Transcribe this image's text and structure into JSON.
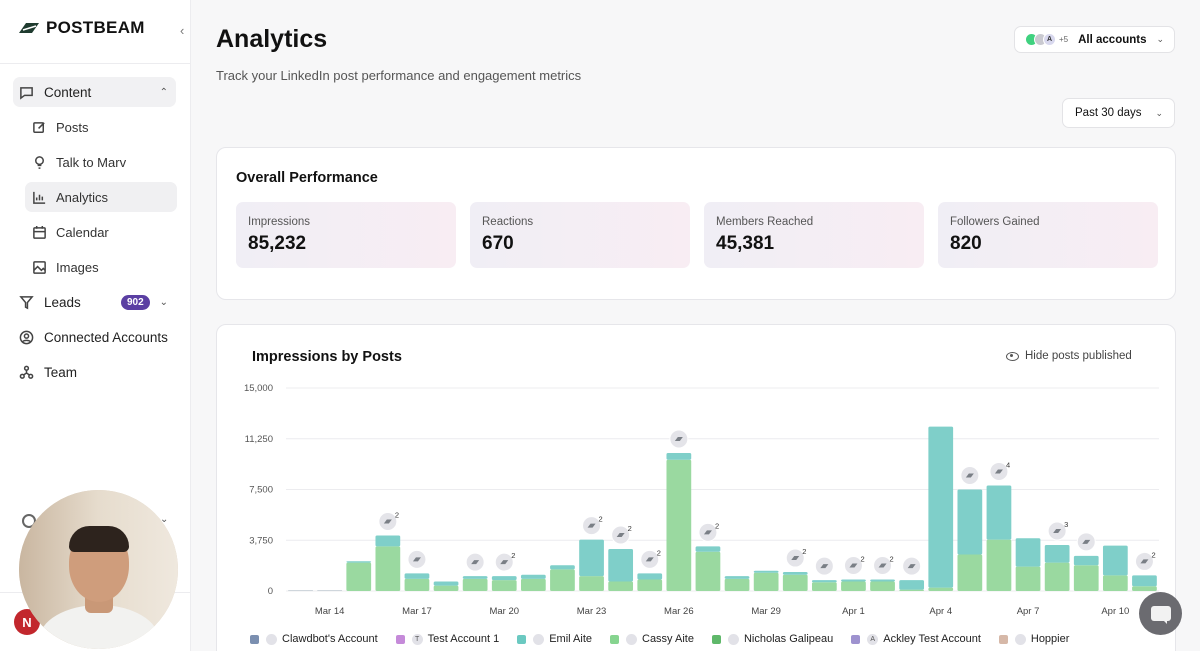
{
  "brand": {
    "name": "POSTBEAM"
  },
  "sidebar": {
    "content_label": "Content",
    "sub_items": [
      {
        "label": "Posts",
        "icon": "edit-icon"
      },
      {
        "label": "Talk to Marv",
        "icon": "lightbulb-icon"
      },
      {
        "label": "Analytics",
        "icon": "bar-chart-icon"
      },
      {
        "label": "Calendar",
        "icon": "calendar-icon"
      },
      {
        "label": "Images",
        "icon": "image-icon"
      }
    ],
    "leads_label": "Leads",
    "leads_badge": "902",
    "connected_label": "Connected Accounts",
    "team_label": "Team",
    "user_initial": "N"
  },
  "header": {
    "title": "Analytics",
    "subtitle": "Track your LinkedIn post performance and engagement metrics",
    "accounts_label": "All accounts",
    "accounts_avatar_letter": "A",
    "accounts_more": "+5",
    "date_range": "Past 30 days"
  },
  "performance": {
    "title": "Overall Performance",
    "kpis": [
      {
        "label": "Impressions",
        "value": "85,232"
      },
      {
        "label": "Reactions",
        "value": "670"
      },
      {
        "label": "Members Reached",
        "value": "45,381"
      },
      {
        "label": "Followers Gained",
        "value": "820"
      }
    ]
  },
  "impressions_card": {
    "title": "Impressions by Posts",
    "hide_label": "Hide posts published"
  },
  "chart_data": {
    "type": "bar",
    "stacked": true,
    "ylim": [
      0,
      15000
    ],
    "yticks": [
      "15,000",
      "11,250",
      "7,500",
      "3,750",
      "0"
    ],
    "x_tick_labels": [
      "Mar 14",
      "Mar 17",
      "Mar 20",
      "Mar 23",
      "Mar 26",
      "Mar 29",
      "Apr 1",
      "Apr 4",
      "Apr 7",
      "Apr 10"
    ],
    "days": [
      "Mar 13",
      "Mar 14",
      "Mar 15",
      "Mar 16",
      "Mar 17",
      "Mar 18",
      "Mar 19",
      "Mar 20",
      "Mar 21",
      "Mar 22",
      "Mar 23",
      "Mar 24",
      "Mar 25",
      "Mar 26",
      "Mar 27",
      "Mar 28",
      "Mar 29",
      "Mar 30",
      "Mar 31",
      "Apr 1",
      "Apr 2",
      "Apr 3",
      "Apr 4",
      "Apr 5",
      "Apr 6",
      "Apr 7",
      "Apr 8",
      "Apr 9",
      "Apr 10",
      "Apr 11"
    ],
    "series": [
      {
        "name": "Cassy Aite",
        "color": "#9ad9a0",
        "values": [
          0,
          0,
          2100,
          3300,
          900,
          400,
          900,
          800,
          900,
          1600,
          1100,
          700,
          850,
          9700,
          2900,
          900,
          1350,
          1200,
          650,
          700,
          700,
          100,
          250,
          2700,
          3800,
          1800,
          2100,
          1900,
          1150,
          350
        ]
      },
      {
        "name": "Emil Aite",
        "color": "#7fcfc9",
        "values": [
          0,
          0,
          100,
          800,
          400,
          300,
          200,
          300,
          300,
          300,
          2700,
          2400,
          450,
          500,
          400,
          200,
          150,
          200,
          150,
          150,
          150,
          700,
          11900,
          4800,
          4000,
          2100,
          1300,
          700,
          2200,
          800
        ]
      }
    ],
    "markers": [
      {
        "day": "Mar 16",
        "count": "2"
      },
      {
        "day": "Mar 17",
        "count": ""
      },
      {
        "day": "Mar 19",
        "count": ""
      },
      {
        "day": "Mar 20",
        "count": "2"
      },
      {
        "day": "Mar 23",
        "count": "2"
      },
      {
        "day": "Mar 24",
        "count": "2"
      },
      {
        "day": "Mar 25",
        "count": "2"
      },
      {
        "day": "Mar 26",
        "count": ""
      },
      {
        "day": "Mar 27",
        "count": "2"
      },
      {
        "day": "Mar 30",
        "count": "2"
      },
      {
        "day": "Mar 31",
        "count": ""
      },
      {
        "day": "Apr 1",
        "count": "2"
      },
      {
        "day": "Apr 2",
        "count": "2"
      },
      {
        "day": "Apr 3",
        "count": ""
      },
      {
        "day": "Apr 5",
        "count": ""
      },
      {
        "day": "Apr 6",
        "count": "4"
      },
      {
        "day": "Apr 8",
        "count": "3"
      },
      {
        "day": "Apr 9",
        "count": ""
      },
      {
        "day": "Apr 11",
        "count": "2"
      }
    ]
  },
  "legend": [
    {
      "name": "Clawdbot's Account",
      "color": "#7b8fb0",
      "avatar": ""
    },
    {
      "name": "Test Account 1",
      "color": "#c58ad9",
      "avatar": "T"
    },
    {
      "name": "Emil Aite",
      "color": "#6bc9c1",
      "avatar": ""
    },
    {
      "name": "Cassy Aite",
      "color": "#86d48f",
      "avatar": ""
    },
    {
      "name": "Nicholas Galipeau",
      "color": "#5fb86a",
      "avatar": ""
    },
    {
      "name": "Ackley Test Account",
      "color": "#9e92cf",
      "avatar": "A"
    },
    {
      "name": "Hoppier",
      "color": "#d6b8a8",
      "avatar": ""
    }
  ]
}
